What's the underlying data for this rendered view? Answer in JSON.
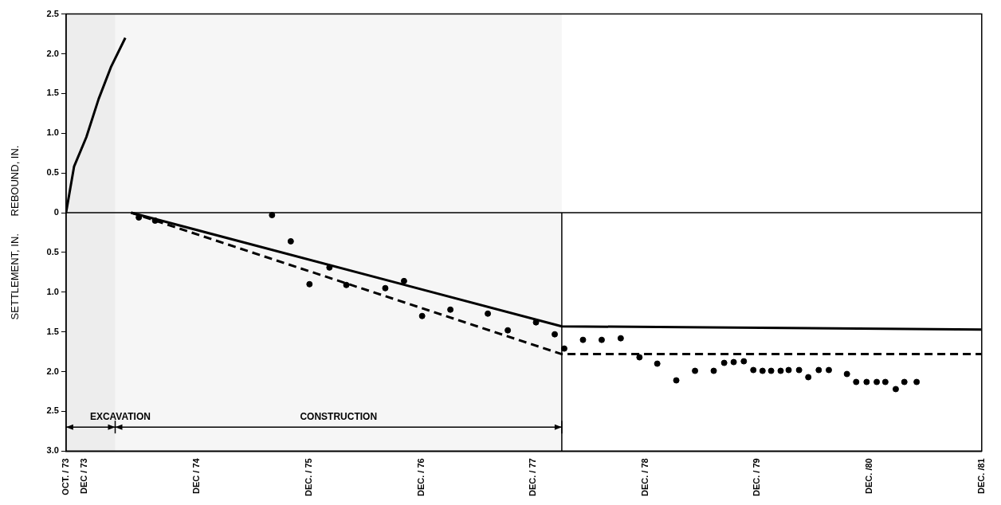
{
  "chart_data": {
    "type": "line",
    "ylabel": "SETTLEMENT, IN.      REBOUND, IN.",
    "xlim": [
      "1973-10-01",
      "1981-12-01"
    ],
    "xticks": [
      {
        "value": "1973-10-01",
        "label": "OCT. / 73"
      },
      {
        "value": "1973-12-01",
        "label": "DEC / 73"
      },
      {
        "value": "1974-12-01",
        "label": "DEC / 74"
      },
      {
        "value": "1975-12-01",
        "label": "DEC. / 75"
      },
      {
        "value": "1976-12-01",
        "label": "DEC. / 76"
      },
      {
        "value": "1977-12-01",
        "label": "DEC. / 77"
      },
      {
        "value": "1978-12-01",
        "label": "DEC. / 78"
      },
      {
        "value": "1979-12-01",
        "label": "DEC. / 79"
      },
      {
        "value": "1980-12-01",
        "label": "DEC. /80"
      },
      {
        "value": "1981-12-01",
        "label": "DEC. /81"
      }
    ],
    "ylim": [
      -3.0,
      2.5
    ],
    "yticks": [
      {
        "value": -3.0,
        "label": "3.0"
      },
      {
        "value": -2.5,
        "label": "2.5"
      },
      {
        "value": -2.0,
        "label": "2.0"
      },
      {
        "value": -1.5,
        "label": "1.5"
      },
      {
        "value": -1.0,
        "label": "1.0"
      },
      {
        "value": -0.5,
        "label": "0.5"
      },
      0,
      0.5,
      {
        "value": 1.0,
        "label": "1.0"
      },
      1.5,
      {
        "value": 2.0,
        "label": "2.0"
      },
      2.5
    ],
    "series": [
      {
        "type": "line",
        "color": "#000000",
        "line_style": "solid",
        "marker": "none",
        "x": [
          "1973-10-01",
          "1973-10-27",
          "1973-12-06",
          "1974-01-15",
          "1974-02-24",
          "1974-04-12"
        ],
        "values": [
          0,
          0.58,
          0.95,
          1.43,
          1.83,
          2.2
        ]
      },
      {
        "type": "line",
        "color": "#000000",
        "line_style": "solid",
        "marker": "none",
        "x": [
          "1974-05-01",
          "1978-03-04",
          "1981-12-01"
        ],
        "values": [
          0,
          -1.43,
          -1.47
        ]
      },
      {
        "type": "line",
        "color": "#000000",
        "line_style": "dashed",
        "marker": "none",
        "x": [
          "1974-05-01",
          "1978-03-04",
          "1981-12-01"
        ],
        "values": [
          0,
          -1.78,
          -1.78
        ]
      },
      {
        "type": "scatter",
        "color": "#000000",
        "marker": "circle",
        "x": [
          "1974-05-26",
          "1974-07-18",
          "1975-08-03",
          "1975-10-03",
          "1975-12-03",
          "1976-02-06",
          "1976-04-01",
          "1976-08-06",
          "1976-10-06",
          "1976-12-04",
          "1977-03-06",
          "1977-07-06",
          "1977-09-09",
          "1977-12-10",
          "1978-02-09",
          "1978-03-12",
          "1978-05-12",
          "1978-07-12",
          "1978-09-12",
          "1978-11-12",
          "1979-01-09",
          "1979-03-12",
          "1979-05-12",
          "1979-07-12",
          "1979-08-15",
          "1979-09-15",
          "1979-10-18",
          "1979-11-18",
          "1979-12-18",
          "1980-01-15",
          "1980-02-15",
          "1980-03-12",
          "1980-04-15",
          "1980-05-15",
          "1980-06-18",
          "1980-07-21",
          "1980-09-18",
          "1980-10-18",
          "1980-11-21",
          "1980-12-24",
          "1981-01-21",
          "1981-02-24",
          "1981-03-24",
          "1981-05-03"
        ],
        "values": [
          -0.06,
          -0.1,
          -0.03,
          -0.36,
          -0.9,
          -0.69,
          -0.91,
          -0.95,
          -0.86,
          -1.3,
          -1.22,
          -1.27,
          -1.48,
          -1.38,
          -1.53,
          -1.71,
          -1.6,
          -1.6,
          -1.58,
          -1.82,
          -1.9,
          -2.11,
          -1.99,
          -1.99,
          -1.89,
          -1.88,
          -1.87,
          -1.98,
          -1.99,
          -1.99,
          -1.99,
          -1.98,
          -1.98,
          -2.07,
          -1.98,
          -1.98,
          -2.03,
          -2.13,
          -2.13,
          -2.13,
          -2.13,
          -2.22,
          -2.13,
          -2.13
        ]
      }
    ],
    "ref_lines": [
      {
        "axis": "y",
        "value": 0,
        "color": "#000000"
      },
      {
        "axis": "x",
        "value": "1978-03-04",
        "color": "#000000"
      }
    ],
    "bands": [
      {
        "axis": "x",
        "from": "1973-10-01",
        "to": "1974-03-10",
        "label": "EXCAVATION"
      },
      {
        "axis": "x",
        "from": "1974-03-10",
        "to": "1978-03-04",
        "label": "CONSTRUCTION"
      }
    ],
    "grid": false,
    "legend": false
  }
}
